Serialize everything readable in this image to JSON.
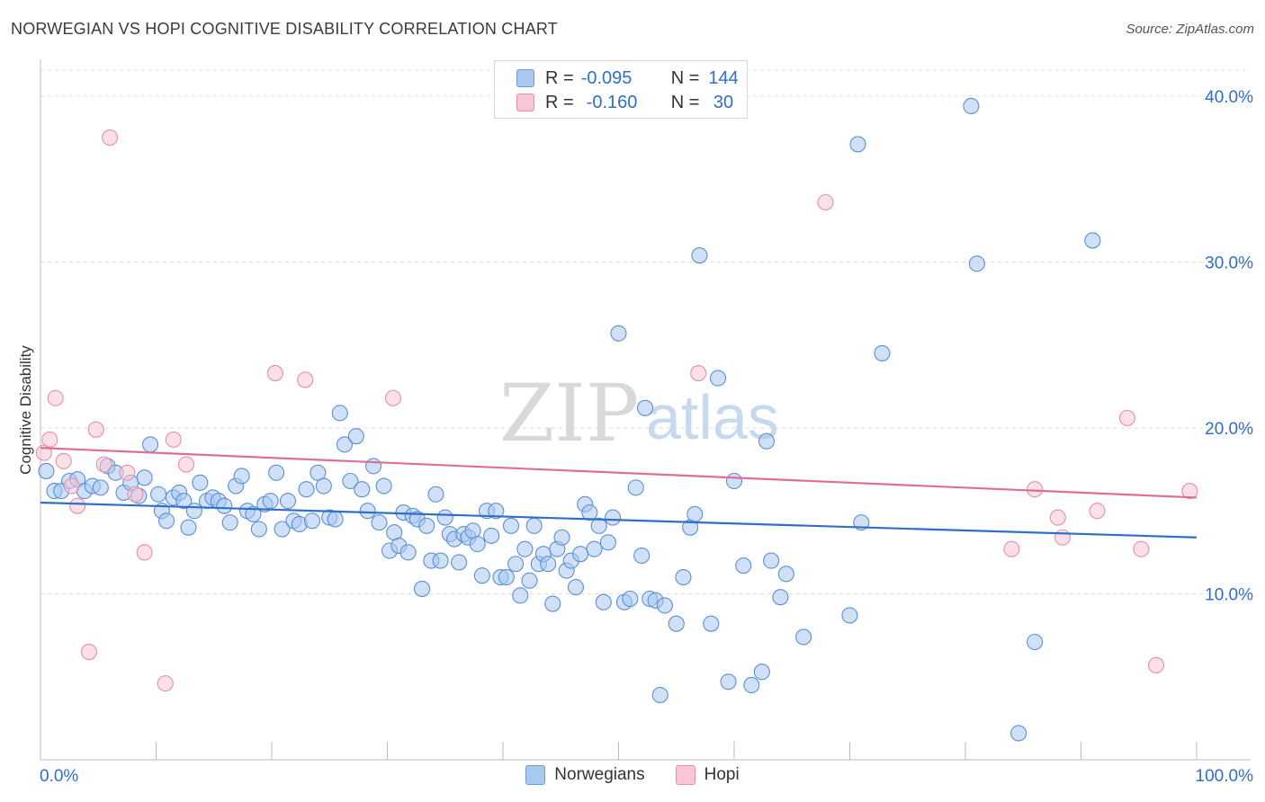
{
  "header": {
    "title": "NORWEGIAN VS HOPI COGNITIVE DISABILITY CORRELATION CHART",
    "source": "Source: ZipAtlas.com"
  },
  "watermark": {
    "zip": "ZIP",
    "atlas": "atlas"
  },
  "legend": {
    "rows": [
      {
        "r_label": "R =",
        "r_value": "-0.095",
        "n_label": "N =",
        "n_value": "144",
        "color": "#a9c8f0",
        "border": "#6a9ad8"
      },
      {
        "r_label": "R =",
        "r_value": "-0.160",
        "n_label": "N =",
        "n_value": " 30",
        "color": "#f9c6d6",
        "border": "#e58fab"
      }
    ]
  },
  "bottom_legend": {
    "items": [
      {
        "label": "Norwegians",
        "color": "#a9c8f0",
        "border": "#6a9ad8"
      },
      {
        "label": "Hopi",
        "color": "#f9c6d6",
        "border": "#e58fab"
      }
    ]
  },
  "chart_data": {
    "type": "scatter",
    "title": "NORWEGIAN VS HOPI COGNITIVE DISABILITY CORRELATION CHART",
    "xlabel": "",
    "ylabel": "Cognitive Disability",
    "xlim": [
      0,
      100
    ],
    "ylim": [
      0,
      42
    ],
    "x_tick_labels": [
      "0.0%",
      "100.0%"
    ],
    "y_ticks": [
      10,
      20,
      30,
      40
    ],
    "y_tick_labels": [
      "10.0%",
      "20.0%",
      "30.0%",
      "40.0%"
    ],
    "grid": true,
    "colors": {
      "norwegians_fill": "#a9c8f0",
      "norwegians_stroke": "#5b8fd4",
      "hopi_fill": "#f9c6d6",
      "hopi_stroke": "#e58fab",
      "blue_line": "#2f6fc9",
      "pink_line": "#e06c98"
    },
    "series": [
      {
        "name": "Norwegians",
        "trend": {
          "x0": 0,
          "y0": 15.5,
          "x1": 100,
          "y1": 13.4
        },
        "points": [
          [
            0.5,
            17.4
          ],
          [
            1.2,
            16.2
          ],
          [
            1.8,
            16.2
          ],
          [
            2.5,
            16.8
          ],
          [
            3.2,
            16.9
          ],
          [
            3.8,
            16.2
          ],
          [
            4.5,
            16.5
          ],
          [
            5.2,
            16.4
          ],
          [
            5.8,
            17.7
          ],
          [
            6.5,
            17.3
          ],
          [
            7.2,
            16.1
          ],
          [
            7.8,
            16.7
          ],
          [
            8.5,
            15.9
          ],
          [
            9.0,
            17.0
          ],
          [
            9.5,
            19.0
          ],
          [
            10.2,
            16.0
          ],
          [
            10.5,
            15.0
          ],
          [
            10.9,
            14.4
          ],
          [
            11.5,
            15.8
          ],
          [
            12.0,
            16.1
          ],
          [
            12.4,
            15.6
          ],
          [
            12.8,
            14.0
          ],
          [
            13.3,
            15.0
          ],
          [
            13.8,
            16.7
          ],
          [
            14.4,
            15.6
          ],
          [
            14.9,
            15.8
          ],
          [
            15.4,
            15.6
          ],
          [
            15.9,
            15.3
          ],
          [
            16.4,
            14.3
          ],
          [
            16.9,
            16.5
          ],
          [
            17.4,
            17.1
          ],
          [
            17.9,
            15.0
          ],
          [
            18.4,
            14.8
          ],
          [
            18.9,
            13.9
          ],
          [
            19.4,
            15.4
          ],
          [
            19.9,
            15.6
          ],
          [
            20.4,
            17.3
          ],
          [
            20.9,
            13.9
          ],
          [
            21.4,
            15.6
          ],
          [
            21.9,
            14.4
          ],
          [
            22.4,
            14.2
          ],
          [
            23.0,
            16.3
          ],
          [
            23.5,
            14.4
          ],
          [
            24.0,
            17.3
          ],
          [
            24.5,
            16.5
          ],
          [
            25.0,
            14.6
          ],
          [
            25.5,
            14.5
          ],
          [
            25.9,
            20.9
          ],
          [
            26.3,
            19.0
          ],
          [
            26.8,
            16.8
          ],
          [
            27.3,
            19.5
          ],
          [
            27.8,
            16.3
          ],
          [
            28.3,
            15.0
          ],
          [
            28.8,
            17.7
          ],
          [
            29.3,
            14.3
          ],
          [
            29.7,
            16.5
          ],
          [
            30.2,
            12.6
          ],
          [
            30.6,
            13.7
          ],
          [
            31.0,
            12.9
          ],
          [
            31.4,
            14.9
          ],
          [
            31.8,
            12.5
          ],
          [
            32.2,
            14.7
          ],
          [
            32.6,
            14.5
          ],
          [
            33.0,
            10.3
          ],
          [
            33.4,
            14.1
          ],
          [
            33.8,
            12.0
          ],
          [
            34.2,
            16.0
          ],
          [
            34.6,
            12.0
          ],
          [
            35.0,
            14.6
          ],
          [
            35.4,
            13.6
          ],
          [
            35.8,
            13.3
          ],
          [
            36.2,
            11.9
          ],
          [
            36.6,
            13.6
          ],
          [
            37.0,
            13.4
          ],
          [
            37.4,
            13.8
          ],
          [
            37.8,
            13.0
          ],
          [
            38.2,
            11.1
          ],
          [
            38.6,
            15.0
          ],
          [
            39.0,
            13.5
          ],
          [
            39.4,
            15.0
          ],
          [
            39.8,
            11.0
          ],
          [
            40.3,
            11.0
          ],
          [
            40.7,
            14.1
          ],
          [
            41.1,
            11.8
          ],
          [
            41.5,
            9.9
          ],
          [
            41.9,
            12.7
          ],
          [
            42.3,
            10.8
          ],
          [
            42.7,
            14.1
          ],
          [
            43.1,
            11.8
          ],
          [
            43.5,
            12.4
          ],
          [
            43.9,
            11.8
          ],
          [
            44.3,
            9.4
          ],
          [
            44.7,
            12.7
          ],
          [
            45.1,
            13.4
          ],
          [
            45.5,
            11.4
          ],
          [
            45.9,
            12.0
          ],
          [
            46.3,
            10.4
          ],
          [
            46.7,
            12.4
          ],
          [
            47.1,
            15.4
          ],
          [
            47.5,
            14.9
          ],
          [
            47.9,
            12.7
          ],
          [
            48.3,
            14.1
          ],
          [
            48.7,
            9.5
          ],
          [
            49.1,
            13.1
          ],
          [
            49.5,
            14.6
          ],
          [
            50.0,
            25.7
          ],
          [
            50.5,
            9.5
          ],
          [
            51.0,
            9.7
          ],
          [
            51.5,
            16.4
          ],
          [
            52.0,
            12.3
          ],
          [
            52.3,
            21.2
          ],
          [
            52.7,
            9.7
          ],
          [
            53.2,
            9.6
          ],
          [
            53.6,
            3.9
          ],
          [
            54.0,
            9.3
          ],
          [
            55.0,
            8.2
          ],
          [
            55.6,
            11.0
          ],
          [
            56.2,
            14.0
          ],
          [
            56.6,
            14.8
          ],
          [
            57.0,
            30.4
          ],
          [
            58.0,
            8.2
          ],
          [
            58.6,
            23.0
          ],
          [
            59.5,
            4.7
          ],
          [
            60.0,
            16.8
          ],
          [
            60.8,
            11.7
          ],
          [
            61.5,
            4.5
          ],
          [
            62.4,
            5.3
          ],
          [
            62.8,
            19.2
          ],
          [
            63.2,
            12.0
          ],
          [
            64.0,
            9.8
          ],
          [
            64.5,
            11.2
          ],
          [
            66.0,
            7.4
          ],
          [
            70.0,
            8.7
          ],
          [
            71.0,
            14.3
          ],
          [
            72.8,
            24.5
          ],
          [
            80.5,
            39.4
          ],
          [
            81.0,
            29.9
          ],
          [
            84.6,
            1.6
          ],
          [
            86.0,
            7.1
          ],
          [
            91.0,
            31.3
          ],
          [
            70.7,
            37.1
          ]
        ]
      },
      {
        "name": "Hopi",
        "trend": {
          "x0": 0,
          "y0": 18.8,
          "x1": 100,
          "y1": 15.8
        },
        "points": [
          [
            0.3,
            18.5
          ],
          [
            0.8,
            19.3
          ],
          [
            1.3,
            21.8
          ],
          [
            2.0,
            18.0
          ],
          [
            2.7,
            16.5
          ],
          [
            3.2,
            15.3
          ],
          [
            4.2,
            6.5
          ],
          [
            4.8,
            19.9
          ],
          [
            5.5,
            17.8
          ],
          [
            6.0,
            37.5
          ],
          [
            7.5,
            17.3
          ],
          [
            8.2,
            16.0
          ],
          [
            9.0,
            12.5
          ],
          [
            10.8,
            4.6
          ],
          [
            11.5,
            19.3
          ],
          [
            12.6,
            17.8
          ],
          [
            20.3,
            23.3
          ],
          [
            22.9,
            22.9
          ],
          [
            30.5,
            21.8
          ],
          [
            56.9,
            23.3
          ],
          [
            67.9,
            33.6
          ],
          [
            84.0,
            12.7
          ],
          [
            86.0,
            16.3
          ],
          [
            88.0,
            14.6
          ],
          [
            88.4,
            13.4
          ],
          [
            91.4,
            15.0
          ],
          [
            94.0,
            20.6
          ],
          [
            95.2,
            12.7
          ],
          [
            96.5,
            5.7
          ],
          [
            99.4,
            16.2
          ]
        ]
      }
    ]
  }
}
